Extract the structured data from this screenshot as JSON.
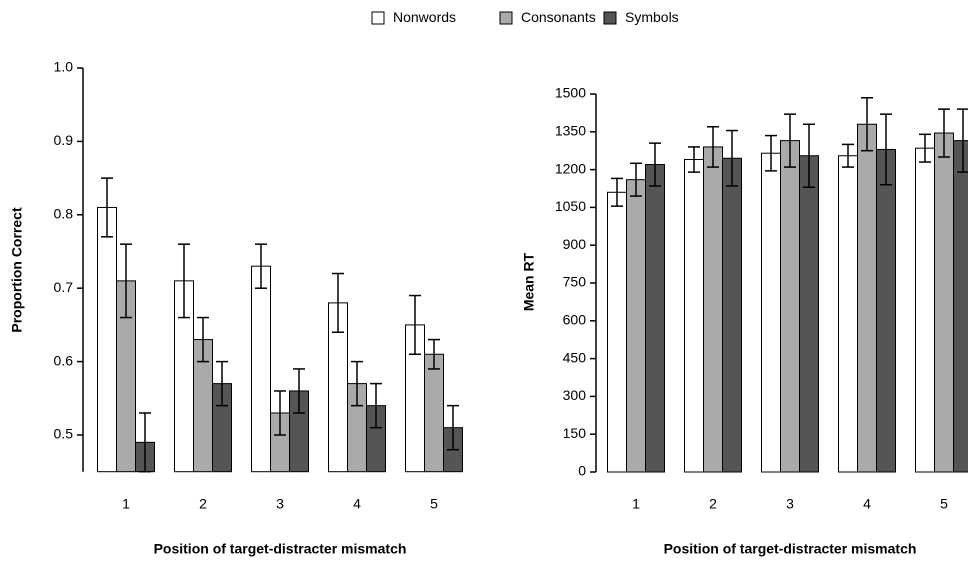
{
  "chart_data": [
    {
      "type": "bar",
      "xlabel": "Position of target-distracter mismatch",
      "ylabel": "Proportion Correct",
      "categories": [
        "1",
        "2",
        "3",
        "4",
        "5"
      ],
      "series": [
        {
          "name": "Nonwords",
          "color": "#ffffff",
          "values": [
            0.81,
            0.71,
            0.73,
            0.68,
            0.65
          ],
          "errors": [
            0.04,
            0.05,
            0.03,
            0.04,
            0.04
          ]
        },
        {
          "name": "Consonants",
          "color": "#aaaaaa",
          "values": [
            0.71,
            0.63,
            0.53,
            0.57,
            0.61
          ],
          "errors": [
            0.05,
            0.03,
            0.03,
            0.03,
            0.02
          ]
        },
        {
          "name": "Symbols",
          "color": "#555555",
          "values": [
            0.49,
            0.57,
            0.56,
            0.54,
            0.51
          ],
          "errors": [
            0.04,
            0.03,
            0.03,
            0.03,
            0.03
          ]
        }
      ],
      "ylim": [
        0.45,
        1.0
      ],
      "yticks": [
        0.5,
        0.6,
        0.7,
        0.8,
        0.9,
        {
          "value": 1,
          "label": "1.0"
        }
      ]
    },
    {
      "type": "bar",
      "xlabel": "Position of target-distracter mismatch",
      "ylabel": "Mean RT",
      "categories": [
        "1",
        "2",
        "3",
        "4",
        "5"
      ],
      "series": [
        {
          "values": [
            1110,
            1240,
            1265,
            1255,
            1285
          ],
          "errors": [
            55,
            50,
            70,
            45,
            55
          ]
        },
        {
          "values": [
            1160,
            1290,
            1315,
            1380,
            1345
          ],
          "errors": [
            65,
            80,
            105,
            105,
            95
          ]
        },
        {
          "values": [
            1220,
            1245,
            1255,
            1280,
            1315
          ],
          "errors": [
            85,
            110,
            125,
            140,
            125
          ]
        }
      ],
      "ylim": [
        0,
        1500
      ],
      "yticks": [
        0,
        150,
        300,
        450,
        600,
        750,
        900,
        1050,
        1200,
        1350,
        1500
      ]
    }
  ]
}
